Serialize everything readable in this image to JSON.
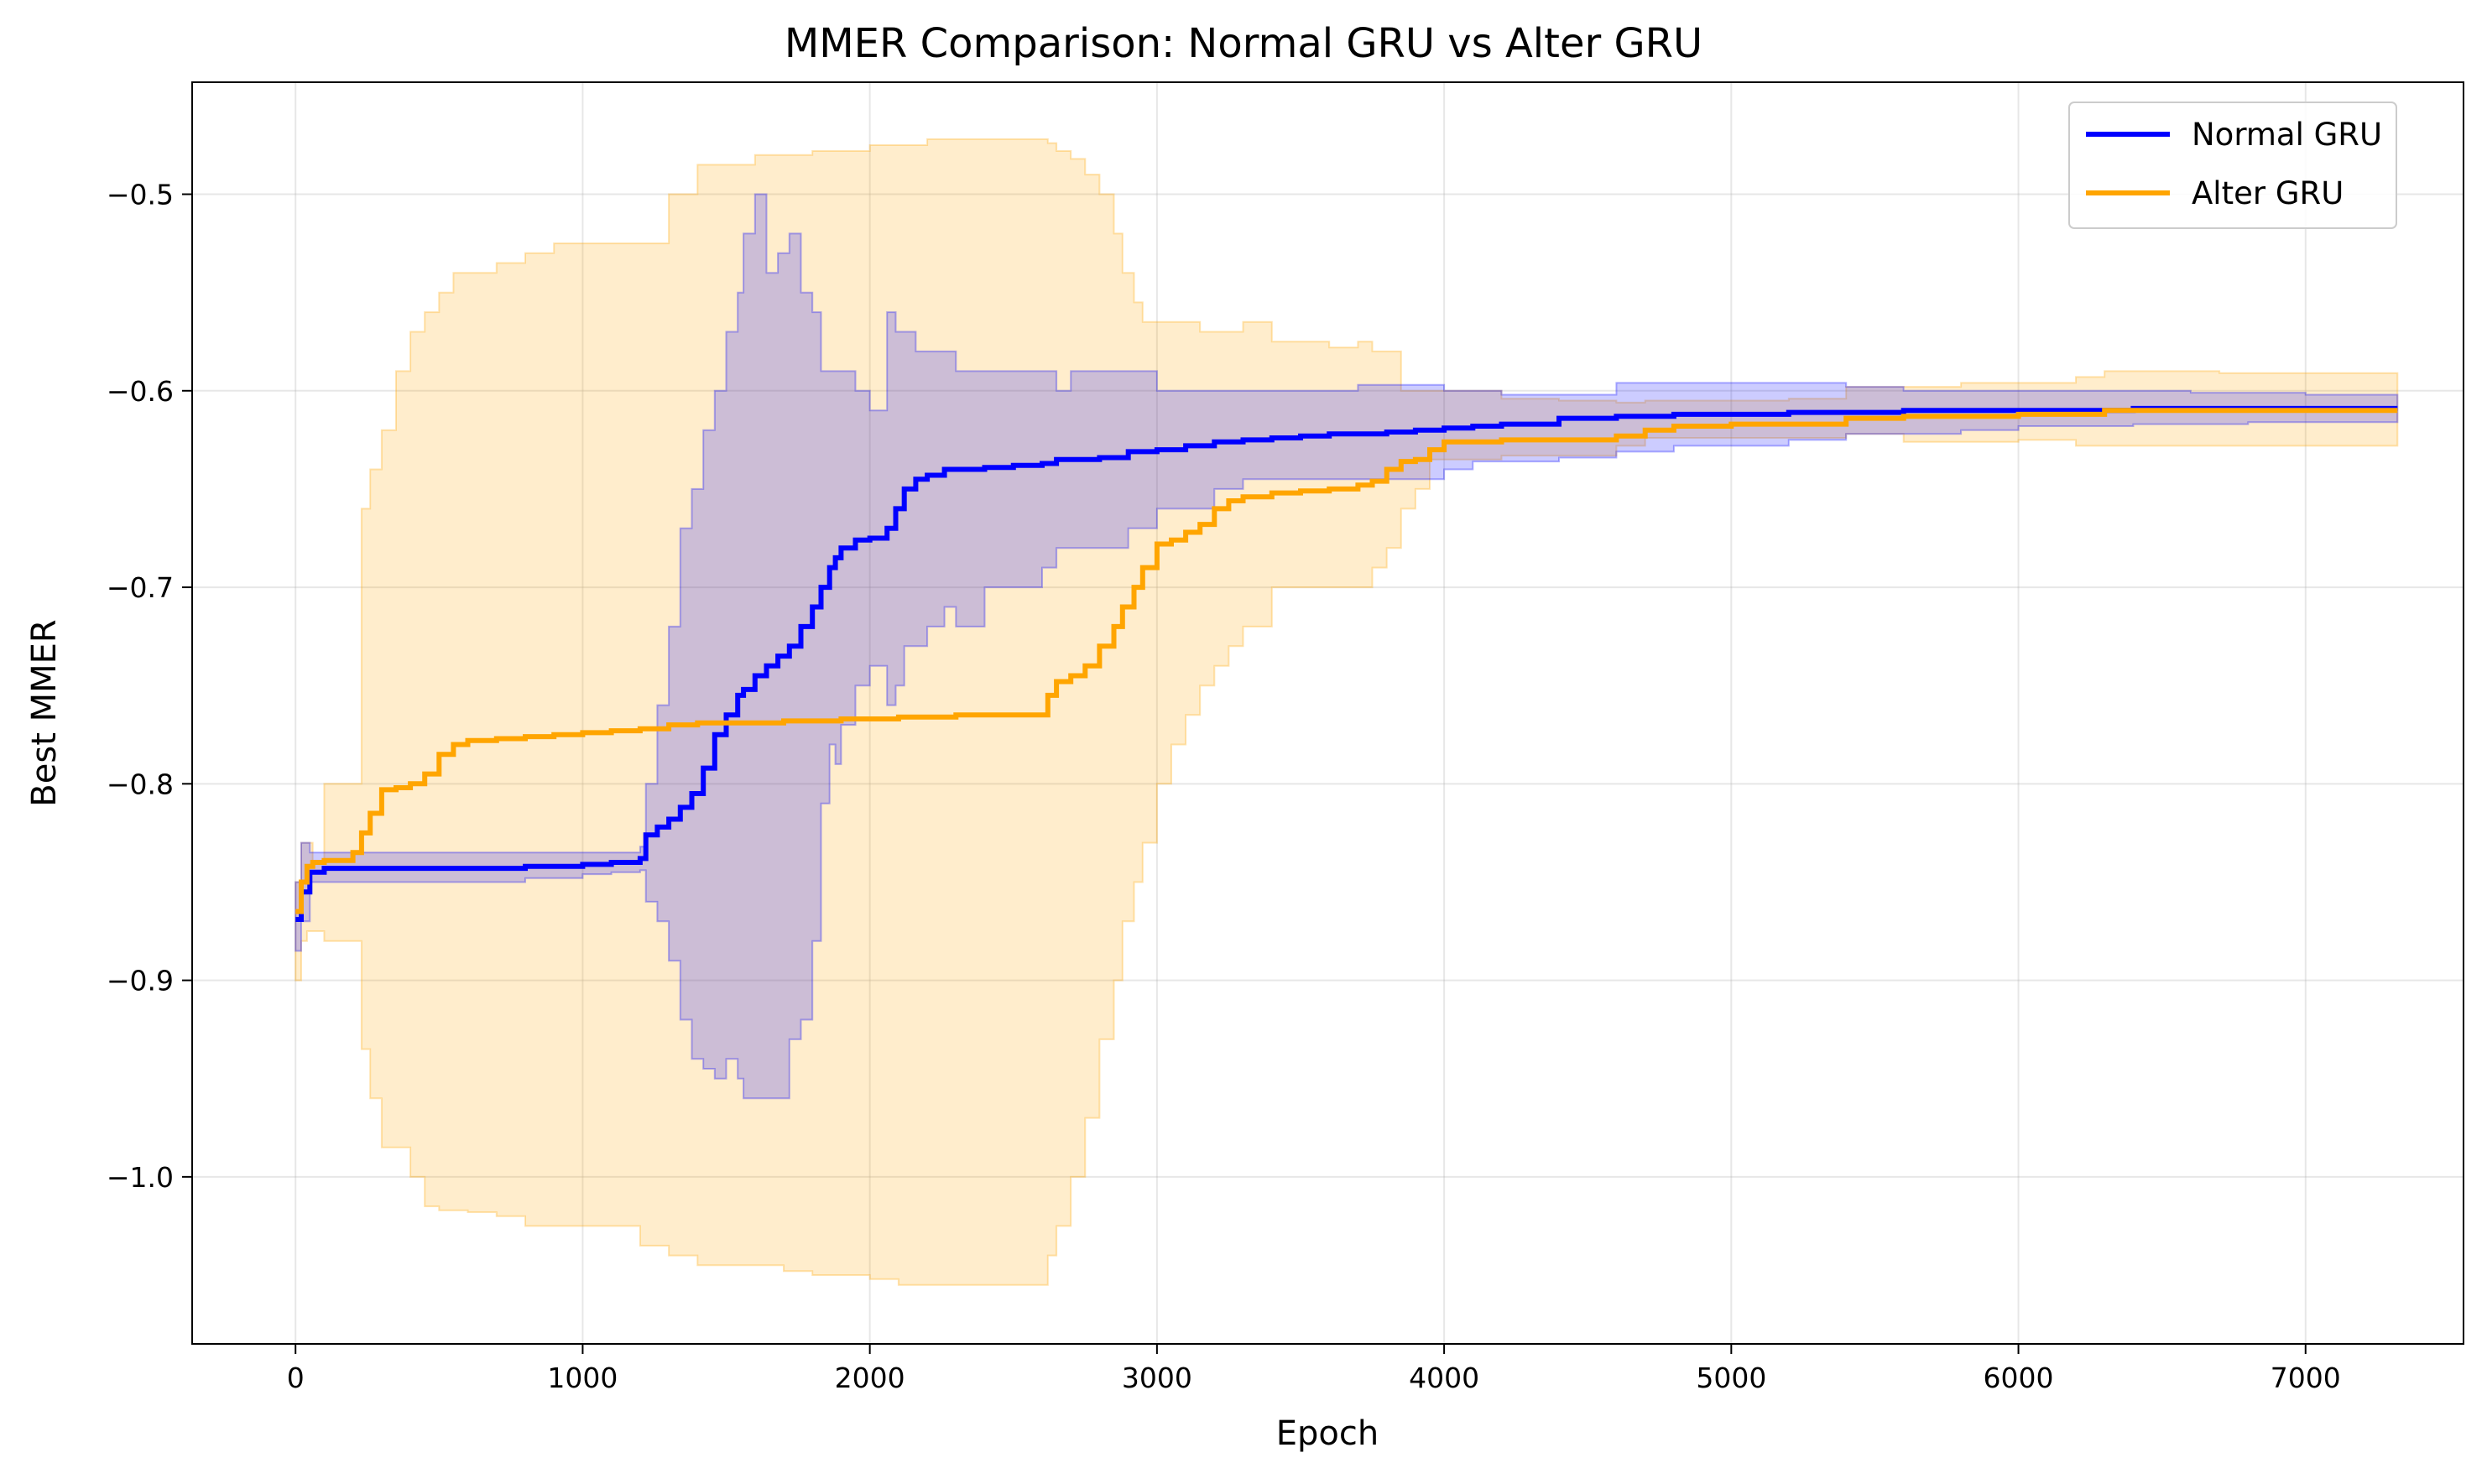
{
  "chart_data": {
    "type": "line",
    "title": "MMER Comparison: Normal GRU vs Alter GRU",
    "xlabel": "Epoch",
    "ylabel": "Best MMER",
    "xlim": [
      -360,
      7550
    ],
    "ylim": [
      -1.085,
      -0.443
    ],
    "xticks": [
      0,
      1000,
      2000,
      3000,
      4000,
      5000,
      6000,
      7000
    ],
    "yticks": [
      -1.0,
      -0.9,
      -0.8,
      -0.7,
      -0.6,
      -0.5
    ],
    "xtick_labels": [
      "0",
      "1000",
      "2000",
      "3000",
      "4000",
      "5000",
      "6000",
      "7000"
    ],
    "ytick_labels": [
      "−1.0",
      "−0.9",
      "−0.8",
      "−0.7",
      "−0.6",
      "−0.5"
    ],
    "grid": true,
    "legend_position": "upper right",
    "series": [
      {
        "name": "Normal GRU",
        "color": "#0000ff",
        "band_color": "#0000ff",
        "x": [
          0,
          20,
          50,
          100,
          400,
          800,
          1000,
          1100,
          1200,
          1220,
          1260,
          1300,
          1340,
          1380,
          1420,
          1460,
          1500,
          1540,
          1560,
          1600,
          1640,
          1680,
          1720,
          1760,
          1800,
          1830,
          1860,
          1880,
          1900,
          1950,
          2000,
          2060,
          2090,
          2120,
          2160,
          2200,
          2260,
          2300,
          2400,
          2500,
          2600,
          2650,
          2700,
          2800,
          2900,
          3000,
          3100,
          3200,
          3300,
          3400,
          3500,
          3600,
          3700,
          3800,
          3900,
          4000,
          4100,
          4200,
          4400,
          4600,
          4800,
          5000,
          5200,
          5400,
          5600,
          5800,
          6000,
          6200,
          6400,
          6600,
          6800,
          7000,
          7200,
          7320
        ],
        "y": [
          -0.869,
          -0.855,
          -0.845,
          -0.843,
          -0.843,
          -0.842,
          -0.841,
          -0.84,
          -0.838,
          -0.826,
          -0.822,
          -0.818,
          -0.812,
          -0.805,
          -0.792,
          -0.775,
          -0.765,
          -0.755,
          -0.752,
          -0.745,
          -0.74,
          -0.735,
          -0.73,
          -0.72,
          -0.71,
          -0.7,
          -0.69,
          -0.685,
          -0.68,
          -0.676,
          -0.675,
          -0.67,
          -0.66,
          -0.65,
          -0.645,
          -0.643,
          -0.64,
          -0.64,
          -0.639,
          -0.638,
          -0.637,
          -0.635,
          -0.635,
          -0.634,
          -0.631,
          -0.63,
          -0.628,
          -0.626,
          -0.625,
          -0.624,
          -0.623,
          -0.622,
          -0.622,
          -0.621,
          -0.62,
          -0.619,
          -0.618,
          -0.617,
          -0.614,
          -0.613,
          -0.612,
          -0.612,
          -0.611,
          -0.611,
          -0.61,
          -0.61,
          -0.61,
          -0.61,
          -0.609,
          -0.609,
          -0.609,
          -0.609,
          -0.609,
          -0.609
        ],
        "upper": [
          -0.85,
          -0.83,
          -0.835,
          -0.835,
          -0.835,
          -0.835,
          -0.835,
          -0.835,
          -0.832,
          -0.8,
          -0.76,
          -0.72,
          -0.67,
          -0.65,
          -0.62,
          -0.6,
          -0.57,
          -0.55,
          -0.52,
          -0.5,
          -0.54,
          -0.53,
          -0.52,
          -0.55,
          -0.56,
          -0.59,
          -0.59,
          -0.59,
          -0.59,
          -0.6,
          -0.61,
          -0.56,
          -0.57,
          -0.57,
          -0.58,
          -0.58,
          -0.58,
          -0.59,
          -0.59,
          -0.59,
          -0.59,
          -0.6,
          -0.59,
          -0.59,
          -0.59,
          -0.6,
          -0.6,
          -0.6,
          -0.6,
          -0.6,
          -0.6,
          -0.6,
          -0.597,
          -0.597,
          -0.597,
          -0.6,
          -0.6,
          -0.602,
          -0.602,
          -0.596,
          -0.596,
          -0.596,
          -0.596,
          -0.598,
          -0.6,
          -0.6,
          -0.6,
          -0.6,
          -0.6,
          -0.601,
          -0.601,
          -0.602,
          -0.602,
          -0.602
        ],
        "lower": [
          -0.885,
          -0.87,
          -0.85,
          -0.85,
          -0.85,
          -0.848,
          -0.846,
          -0.845,
          -0.844,
          -0.86,
          -0.87,
          -0.89,
          -0.92,
          -0.94,
          -0.945,
          -0.95,
          -0.94,
          -0.95,
          -0.96,
          -0.96,
          -0.96,
          -0.96,
          -0.93,
          -0.92,
          -0.88,
          -0.81,
          -0.78,
          -0.79,
          -0.77,
          -0.75,
          -0.74,
          -0.76,
          -0.75,
          -0.73,
          -0.73,
          -0.72,
          -0.71,
          -0.72,
          -0.7,
          -0.7,
          -0.69,
          -0.68,
          -0.68,
          -0.68,
          -0.67,
          -0.66,
          -0.66,
          -0.65,
          -0.645,
          -0.645,
          -0.645,
          -0.645,
          -0.645,
          -0.645,
          -0.645,
          -0.64,
          -0.636,
          -0.636,
          -0.634,
          -0.631,
          -0.628,
          -0.628,
          -0.625,
          -0.622,
          -0.622,
          -0.62,
          -0.618,
          -0.618,
          -0.617,
          -0.617,
          -0.616,
          -0.616,
          -0.616,
          -0.616
        ]
      },
      {
        "name": "Alter GRU",
        "color": "#ffa500",
        "band_color": "#ffa500",
        "x": [
          0,
          20,
          40,
          60,
          100,
          150,
          200,
          230,
          260,
          300,
          350,
          400,
          450,
          500,
          550,
          600,
          700,
          800,
          900,
          1000,
          1100,
          1200,
          1300,
          1400,
          1500,
          1600,
          1700,
          1800,
          1900,
          2000,
          2100,
          2200,
          2300,
          2400,
          2500,
          2600,
          2620,
          2650,
          2700,
          2750,
          2800,
          2850,
          2880,
          2920,
          2950,
          3000,
          3050,
          3100,
          3150,
          3200,
          3250,
          3300,
          3400,
          3500,
          3600,
          3700,
          3750,
          3800,
          3850,
          3900,
          3950,
          4000,
          4200,
          4400,
          4600,
          4700,
          4800,
          5000,
          5200,
          5400,
          5600,
          5800,
          6000,
          6200,
          6300,
          6500,
          6700,
          7000,
          7320
        ],
        "y": [
          -0.865,
          -0.85,
          -0.842,
          -0.84,
          -0.839,
          -0.839,
          -0.835,
          -0.825,
          -0.815,
          -0.803,
          -0.802,
          -0.8,
          -0.795,
          -0.785,
          -0.78,
          -0.778,
          -0.777,
          -0.776,
          -0.775,
          -0.774,
          -0.773,
          -0.772,
          -0.77,
          -0.769,
          -0.769,
          -0.769,
          -0.768,
          -0.768,
          -0.767,
          -0.767,
          -0.766,
          -0.766,
          -0.765,
          -0.765,
          -0.765,
          -0.765,
          -0.755,
          -0.748,
          -0.745,
          -0.74,
          -0.73,
          -0.72,
          -0.71,
          -0.7,
          -0.69,
          -0.678,
          -0.676,
          -0.672,
          -0.668,
          -0.66,
          -0.656,
          -0.654,
          -0.652,
          -0.651,
          -0.65,
          -0.648,
          -0.646,
          -0.64,
          -0.636,
          -0.635,
          -0.63,
          -0.626,
          -0.625,
          -0.625,
          -0.623,
          -0.62,
          -0.618,
          -0.617,
          -0.617,
          -0.614,
          -0.613,
          -0.613,
          -0.612,
          -0.612,
          -0.61,
          -0.61,
          -0.61,
          -0.61,
          -0.61
        ],
        "upper": [
          -0.85,
          -0.83,
          -0.83,
          -0.84,
          -0.8,
          -0.8,
          -0.8,
          -0.66,
          -0.64,
          -0.62,
          -0.59,
          -0.57,
          -0.56,
          -0.55,
          -0.54,
          -0.54,
          -0.535,
          -0.53,
          -0.525,
          -0.525,
          -0.525,
          -0.525,
          -0.5,
          -0.485,
          -0.485,
          -0.48,
          -0.48,
          -0.478,
          -0.478,
          -0.475,
          -0.475,
          -0.472,
          -0.472,
          -0.472,
          -0.472,
          -0.472,
          -0.474,
          -0.478,
          -0.482,
          -0.49,
          -0.5,
          -0.52,
          -0.54,
          -0.555,
          -0.565,
          -0.565,
          -0.565,
          -0.565,
          -0.57,
          -0.57,
          -0.57,
          -0.565,
          -0.575,
          -0.575,
          -0.578,
          -0.575,
          -0.58,
          -0.58,
          -0.6,
          -0.6,
          -0.6,
          -0.6,
          -0.604,
          -0.605,
          -0.606,
          -0.605,
          -0.605,
          -0.605,
          -0.604,
          -0.598,
          -0.598,
          -0.596,
          -0.596,
          -0.593,
          -0.59,
          -0.59,
          -0.591,
          -0.591,
          -0.591
        ],
        "lower": [
          -0.9,
          -0.88,
          -0.875,
          -0.875,
          -0.88,
          -0.88,
          -0.88,
          -0.935,
          -0.96,
          -0.985,
          -0.985,
          -1.0,
          -1.015,
          -1.017,
          -1.017,
          -1.018,
          -1.02,
          -1.025,
          -1.025,
          -1.025,
          -1.025,
          -1.035,
          -1.04,
          -1.045,
          -1.045,
          -1.045,
          -1.048,
          -1.05,
          -1.05,
          -1.052,
          -1.055,
          -1.055,
          -1.055,
          -1.055,
          -1.055,
          -1.055,
          -1.04,
          -1.025,
          -1.0,
          -0.97,
          -0.93,
          -0.9,
          -0.87,
          -0.85,
          -0.83,
          -0.8,
          -0.78,
          -0.765,
          -0.75,
          -0.74,
          -0.73,
          -0.72,
          -0.7,
          -0.7,
          -0.7,
          -0.7,
          -0.69,
          -0.68,
          -0.66,
          -0.65,
          -0.635,
          -0.635,
          -0.633,
          -0.633,
          -0.628,
          -0.624,
          -0.624,
          -0.624,
          -0.624,
          -0.622,
          -0.626,
          -0.626,
          -0.625,
          -0.628,
          -0.628,
          -0.628,
          -0.628,
          -0.628,
          -0.628
        ]
      }
    ]
  }
}
